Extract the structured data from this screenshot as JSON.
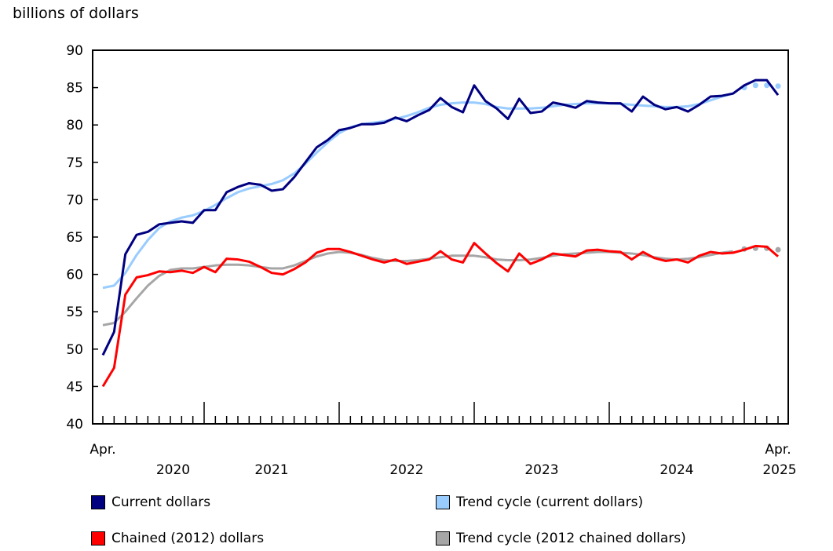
{
  "chart_data": {
    "type": "line",
    "ylabel": "billions of dollars",
    "ylim": [
      40,
      90
    ],
    "yticks": [
      40,
      45,
      50,
      55,
      60,
      65,
      70,
      75,
      80,
      85,
      90
    ],
    "x_start": "Apr. 2020",
    "x_end": "Apr. 2025",
    "x_tick_labels": {
      "start_month": "Apr.",
      "end_month": "Apr.",
      "years": [
        "2020",
        "2021",
        "2022",
        "2023",
        "2024",
        "2025"
      ]
    },
    "frequency": "monthly",
    "legend_placement": "bottom",
    "grid": false,
    "series": [
      {
        "name": "Current dollars",
        "color": "#000080",
        "style": "solid",
        "values": [
          49.2,
          52.3,
          62.7,
          65.3,
          65.7,
          66.7,
          66.9,
          67.1,
          66.9,
          68.6,
          68.6,
          71.0,
          71.7,
          72.2,
          72.0,
          71.2,
          71.4,
          73.0,
          75.0,
          77.0,
          78.0,
          79.3,
          79.6,
          80.1,
          80.1,
          80.3,
          81.0,
          80.5,
          81.3,
          82.0,
          83.6,
          82.4,
          81.7,
          85.3,
          83.2,
          82.2,
          80.8,
          83.5,
          81.6,
          81.8,
          83.0,
          82.7,
          82.3,
          83.2,
          83.0,
          82.9,
          82.9,
          81.8,
          83.8,
          82.7,
          82.1,
          82.4,
          81.8,
          82.7,
          83.8,
          83.9,
          84.2,
          85.3,
          86.0,
          86.0,
          84.0
        ]
      },
      {
        "name": "Trend cycle (current dollars)",
        "color": "#99ccff",
        "style": "solid-then-dotted",
        "dotted_from": "Jan. 2025",
        "values": [
          58.2,
          58.5,
          60.2,
          62.6,
          64.6,
          66.2,
          67.1,
          67.6,
          67.9,
          68.5,
          69.3,
          70.2,
          71.0,
          71.5,
          71.8,
          72.1,
          72.6,
          73.5,
          74.8,
          76.3,
          77.7,
          78.9,
          79.7,
          80.1,
          80.3,
          80.5,
          80.8,
          81.2,
          81.7,
          82.3,
          82.7,
          82.9,
          83.0,
          83.0,
          82.8,
          82.4,
          82.2,
          82.2,
          82.2,
          82.3,
          82.5,
          82.7,
          82.8,
          82.9,
          82.9,
          82.9,
          82.8,
          82.7,
          82.6,
          82.5,
          82.4,
          82.4,
          82.5,
          82.8,
          83.3,
          83.8,
          84.2,
          85.0,
          85.3,
          85.3,
          85.2
        ]
      },
      {
        "name": "Chained (2012) dollars",
        "color": "#ff0000",
        "style": "solid",
        "values": [
          45.0,
          47.5,
          57.3,
          59.6,
          59.9,
          60.4,
          60.3,
          60.5,
          60.2,
          61.0,
          60.3,
          62.1,
          62.0,
          61.7,
          61.0,
          60.2,
          60.0,
          60.7,
          61.6,
          62.9,
          63.4,
          63.4,
          63.0,
          62.5,
          62.0,
          61.6,
          62.0,
          61.4,
          61.7,
          62.0,
          63.1,
          62.0,
          61.6,
          64.2,
          62.8,
          61.5,
          60.4,
          62.8,
          61.4,
          62.0,
          62.8,
          62.6,
          62.4,
          63.2,
          63.3,
          63.1,
          63.0,
          62.0,
          63.0,
          62.2,
          61.8,
          62.0,
          61.6,
          62.5,
          63.0,
          62.8,
          62.9,
          63.3,
          63.8,
          63.7,
          62.4
        ]
      },
      {
        "name": "Trend cycle (2012 chained dollars)",
        "color": "#a6a6a6",
        "style": "solid-then-dotted",
        "dotted_from": "Jan. 2025",
        "values": [
          53.2,
          53.5,
          55.0,
          56.8,
          58.5,
          59.8,
          60.6,
          60.8,
          60.8,
          61.0,
          61.2,
          61.3,
          61.3,
          61.2,
          61.0,
          60.8,
          60.8,
          61.2,
          61.8,
          62.4,
          62.8,
          63.0,
          62.9,
          62.6,
          62.2,
          61.9,
          61.8,
          61.8,
          61.9,
          62.1,
          62.3,
          62.5,
          62.5,
          62.5,
          62.3,
          62.0,
          61.9,
          61.9,
          62.0,
          62.2,
          62.5,
          62.7,
          62.8,
          62.9,
          63.0,
          63.0,
          62.9,
          62.8,
          62.6,
          62.3,
          62.1,
          62.0,
          62.1,
          62.3,
          62.6,
          62.9,
          63.1,
          63.4,
          63.5,
          63.5,
          63.3
        ]
      }
    ]
  }
}
